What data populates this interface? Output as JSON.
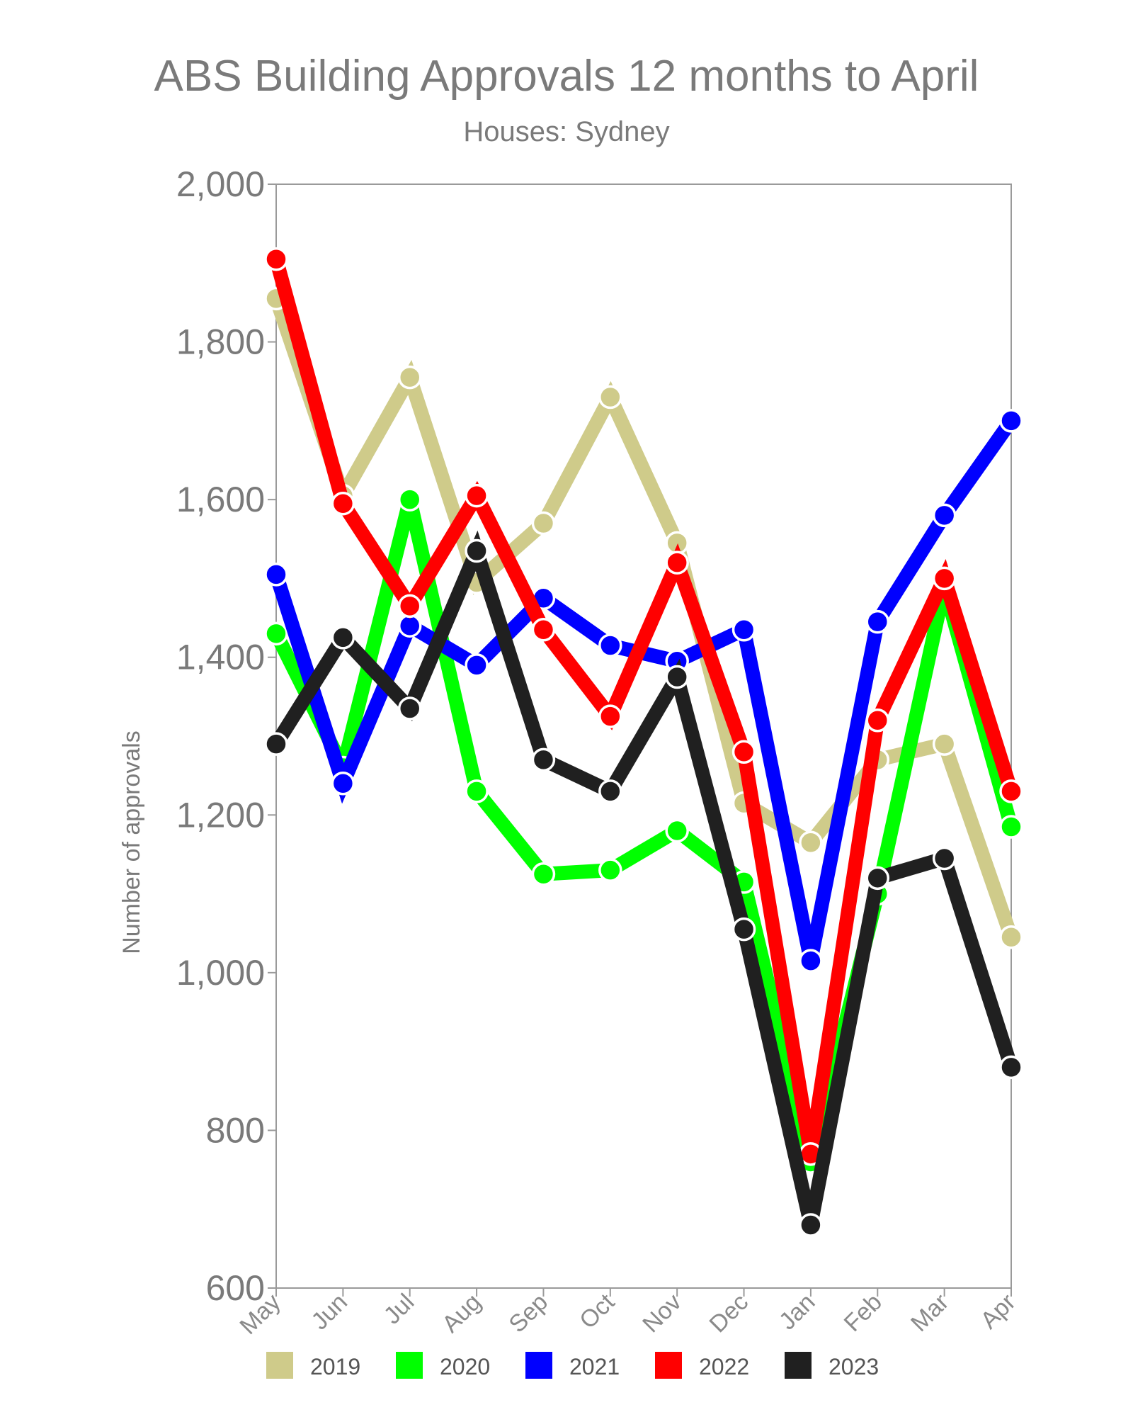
{
  "chart_data": {
    "type": "line",
    "title": "ABS Building Approvals 12 months to April",
    "subtitle": "Houses: Sydney",
    "xlabel": "",
    "ylabel": "Number of approvals",
    "ylim": [
      600,
      2000
    ],
    "y_ticks": [
      600,
      800,
      1000,
      1200,
      1400,
      1600,
      1800,
      2000
    ],
    "y_tick_labels": [
      "600",
      "800",
      "1,000",
      "1,200",
      "1,400",
      "1,600",
      "1,800",
      "2,000"
    ],
    "categories": [
      "May",
      "Jun",
      "Jul",
      "Aug",
      "Sep",
      "Oct",
      "Nov",
      "Dec",
      "Jan",
      "Feb",
      "Mar",
      "Apr"
    ],
    "legend_position": "bottom",
    "grid": false,
    "series": [
      {
        "name": "2019",
        "color": "#cfcb8a",
        "values": [
          1855,
          1605,
          1755,
          1495,
          1570,
          1730,
          1545,
          1215,
          1165,
          1270,
          1290,
          1045
        ]
      },
      {
        "name": "2020",
        "color": "#00ff00",
        "values": [
          1430,
          1260,
          1600,
          1230,
          1125,
          1130,
          1180,
          1115,
          760,
          1100,
          1490,
          1185
        ]
      },
      {
        "name": "2021",
        "color": "#0000ff",
        "values": [
          1505,
          1240,
          1440,
          1390,
          1475,
          1415,
          1395,
          1435,
          1015,
          1445,
          1580,
          1700
        ]
      },
      {
        "name": "2022",
        "color": "#ff0000",
        "values": [
          1905,
          1595,
          1465,
          1605,
          1435,
          1325,
          1520,
          1280,
          770,
          1320,
          1500,
          1230
        ]
      },
      {
        "name": "2023",
        "color": "#202020",
        "values": [
          1290,
          1425,
          1335,
          1535,
          1270,
          1230,
          1375,
          1055,
          680,
          1120,
          1145,
          880
        ]
      }
    ]
  }
}
